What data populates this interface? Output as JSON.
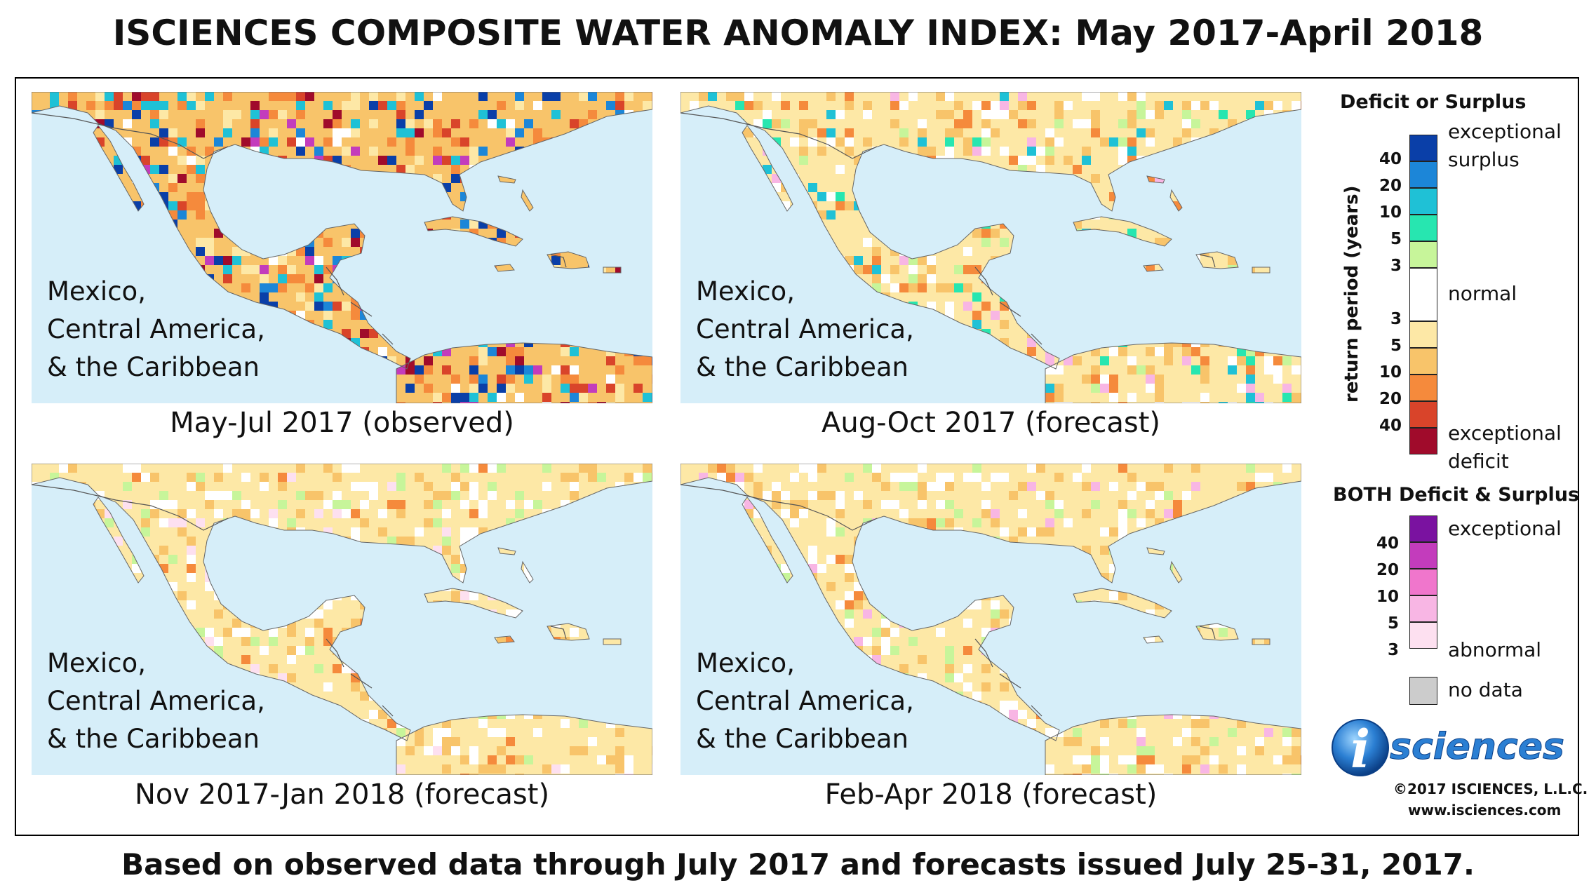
{
  "title": "ISCIENCES COMPOSITE WATER ANOMALY INDEX: May 2017-April 2018",
  "footer": "Based on observed data through July 2017 and forecasts issued July 25-31, 2017.",
  "region_label": [
    "Mexico,",
    "Central America,",
    "& the Caribbean"
  ],
  "panels": [
    {
      "caption": "May-Jul 2017 (observed)",
      "palette": "observed"
    },
    {
      "caption": "Aug-Oct 2017 (forecast)",
      "palette": "aug"
    },
    {
      "caption": "Nov 2017-Jan 2018 (forecast)",
      "palette": "nov"
    },
    {
      "caption": "Feb-Apr 2018 (forecast)",
      "palette": "feb"
    }
  ],
  "legend": {
    "deficit_surplus_title": "Deficit or Surplus",
    "axis_label": "return period (years)",
    "surplus_ticks": [
      "40",
      "20",
      "10",
      "5",
      "3"
    ],
    "deficit_ticks": [
      "3",
      "5",
      "10",
      "20",
      "40"
    ],
    "exceptional_surplus": [
      "exceptional",
      "surplus"
    ],
    "normal": "normal",
    "exceptional_deficit": [
      "exceptional",
      "deficit"
    ],
    "both_title": "BOTH Deficit & Surplus",
    "both_ticks": [
      "40",
      "20",
      "10",
      "5",
      "3"
    ],
    "both_exceptional": "exceptional",
    "both_abnormal": "abnormal",
    "no_data": "no data",
    "colors": {
      "surplus": [
        "#0a3fa8",
        "#1c86d8",
        "#1fc1d6",
        "#27e6b0",
        "#c7f59a"
      ],
      "normal": "#ffffff",
      "deficit": [
        "#fde8a6",
        "#f8c46a",
        "#f58a3c",
        "#d9442a",
        "#a00b2b"
      ],
      "both": [
        "#7a12a0",
        "#c33cbc",
        "#f076cc",
        "#f8b6e4",
        "#fde0f0"
      ],
      "no_data": "#cccccc"
    }
  },
  "logo_text": "sciences",
  "copyright": "©2017 ISCIENCES, L.L.C.",
  "website": "www.isciences.com"
}
